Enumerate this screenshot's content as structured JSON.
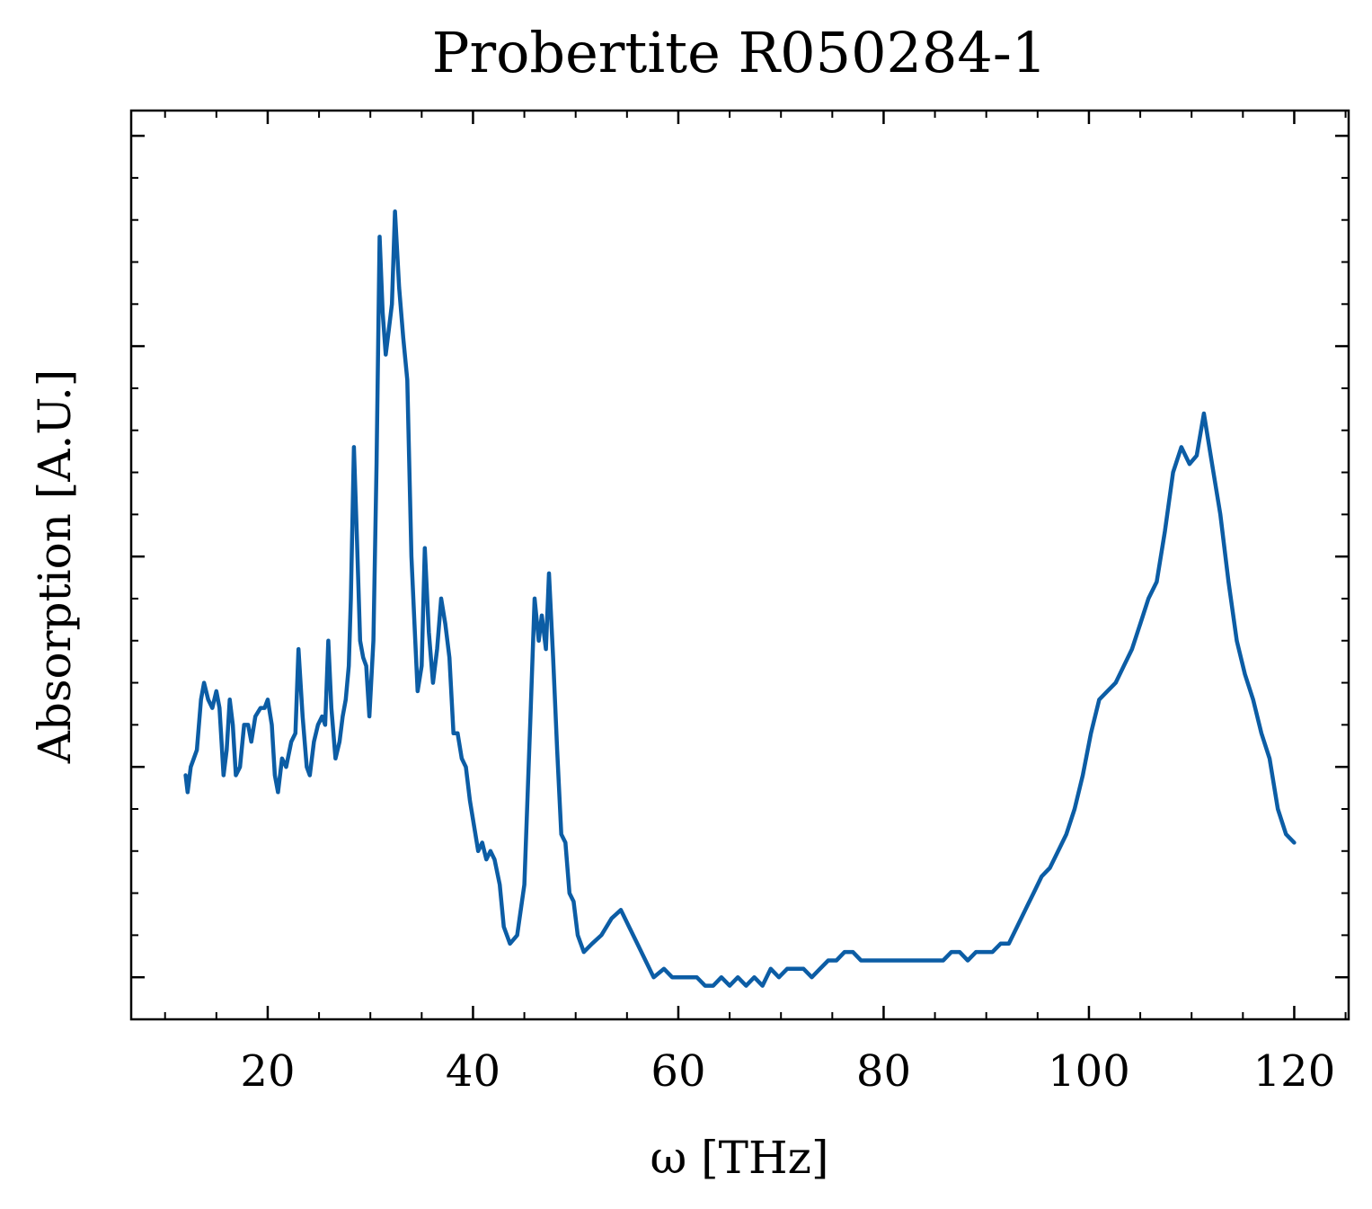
{
  "chart_data": {
    "type": "line",
    "title": "Probertite R050284-1",
    "xlabel": "ω [THz]",
    "ylabel": "Absorption [A.U.]",
    "xlim": [
      6.7,
      125.3
    ],
    "ylim": [
      0.0,
      1.08
    ],
    "xticks": [
      20,
      40,
      60,
      80,
      100,
      120
    ],
    "xticks_minor_step": 5,
    "yticks": [
      0.05,
      0.3,
      0.55,
      0.8,
      1.05
    ],
    "yticks_minor_step": 0.05,
    "ytick_labels_visible": false,
    "grid": false,
    "legend": "none",
    "colors": {
      "series": "#0c5da5"
    },
    "series": [
      {
        "color": "#0c5da5",
        "points": [
          [
            12.0,
            0.29
          ],
          [
            12.2,
            0.27
          ],
          [
            12.5,
            0.3
          ],
          [
            12.8,
            0.31
          ],
          [
            13.1,
            0.32
          ],
          [
            13.5,
            0.38
          ],
          [
            13.8,
            0.4
          ],
          [
            14.2,
            0.38
          ],
          [
            14.6,
            0.37
          ],
          [
            15.0,
            0.39
          ],
          [
            15.3,
            0.37
          ],
          [
            15.7,
            0.29
          ],
          [
            16.0,
            0.32
          ],
          [
            16.3,
            0.38
          ],
          [
            16.6,
            0.35
          ],
          [
            16.9,
            0.29
          ],
          [
            17.3,
            0.3
          ],
          [
            17.7,
            0.35
          ],
          [
            18.1,
            0.35
          ],
          [
            18.4,
            0.33
          ],
          [
            18.8,
            0.36
          ],
          [
            19.3,
            0.37
          ],
          [
            19.7,
            0.37
          ],
          [
            20.0,
            0.38
          ],
          [
            20.4,
            0.35
          ],
          [
            20.7,
            0.29
          ],
          [
            21.0,
            0.27
          ],
          [
            21.4,
            0.31
          ],
          [
            21.8,
            0.3
          ],
          [
            22.3,
            0.33
          ],
          [
            22.7,
            0.34
          ],
          [
            23.0,
            0.44
          ],
          [
            23.4,
            0.36
          ],
          [
            23.8,
            0.3
          ],
          [
            24.1,
            0.29
          ],
          [
            24.5,
            0.33
          ],
          [
            24.9,
            0.35
          ],
          [
            25.3,
            0.36
          ],
          [
            25.6,
            0.35
          ],
          [
            25.9,
            0.45
          ],
          [
            26.2,
            0.37
          ],
          [
            26.6,
            0.31
          ],
          [
            27.0,
            0.33
          ],
          [
            27.3,
            0.36
          ],
          [
            27.6,
            0.38
          ],
          [
            27.9,
            0.42
          ],
          [
            28.1,
            0.5
          ],
          [
            28.4,
            0.68
          ],
          [
            28.7,
            0.57
          ],
          [
            29.0,
            0.45
          ],
          [
            29.3,
            0.43
          ],
          [
            29.6,
            0.42
          ],
          [
            29.9,
            0.36
          ],
          [
            30.3,
            0.45
          ],
          [
            30.6,
            0.66
          ],
          [
            30.9,
            0.93
          ],
          [
            31.2,
            0.84
          ],
          [
            31.5,
            0.79
          ],
          [
            31.8,
            0.82
          ],
          [
            32.1,
            0.85
          ],
          [
            32.4,
            0.96
          ],
          [
            32.8,
            0.87
          ],
          [
            33.2,
            0.81
          ],
          [
            33.6,
            0.76
          ],
          [
            34.0,
            0.55
          ],
          [
            34.3,
            0.47
          ],
          [
            34.6,
            0.39
          ],
          [
            35.0,
            0.42
          ],
          [
            35.3,
            0.56
          ],
          [
            35.7,
            0.46
          ],
          [
            36.1,
            0.4
          ],
          [
            36.5,
            0.44
          ],
          [
            36.9,
            0.5
          ],
          [
            37.3,
            0.47
          ],
          [
            37.7,
            0.43
          ],
          [
            38.1,
            0.34
          ],
          [
            38.5,
            0.34
          ],
          [
            38.9,
            0.31
          ],
          [
            39.3,
            0.3
          ],
          [
            39.7,
            0.26
          ],
          [
            40.1,
            0.23
          ],
          [
            40.5,
            0.2
          ],
          [
            40.9,
            0.21
          ],
          [
            41.3,
            0.19
          ],
          [
            41.7,
            0.2
          ],
          [
            42.1,
            0.19
          ],
          [
            42.6,
            0.16
          ],
          [
            43.0,
            0.11
          ],
          [
            43.6,
            0.09
          ],
          [
            44.3,
            0.1
          ],
          [
            45.0,
            0.16
          ],
          [
            45.6,
            0.36
          ],
          [
            46.0,
            0.5
          ],
          [
            46.4,
            0.45
          ],
          [
            46.7,
            0.48
          ],
          [
            47.1,
            0.44
          ],
          [
            47.4,
            0.53
          ],
          [
            47.8,
            0.43
          ],
          [
            48.2,
            0.32
          ],
          [
            48.6,
            0.22
          ],
          [
            49.0,
            0.21
          ],
          [
            49.4,
            0.15
          ],
          [
            49.8,
            0.14
          ],
          [
            50.2,
            0.1
          ],
          [
            50.8,
            0.08
          ],
          [
            51.6,
            0.09
          ],
          [
            52.5,
            0.1
          ],
          [
            53.5,
            0.12
          ],
          [
            54.4,
            0.13
          ],
          [
            55.2,
            0.11
          ],
          [
            56.0,
            0.09
          ],
          [
            56.8,
            0.07
          ],
          [
            57.6,
            0.05
          ],
          [
            58.6,
            0.06
          ],
          [
            59.4,
            0.05
          ],
          [
            60.2,
            0.05
          ],
          [
            61.0,
            0.05
          ],
          [
            61.8,
            0.05
          ],
          [
            62.6,
            0.04
          ],
          [
            63.4,
            0.04
          ],
          [
            64.2,
            0.05
          ],
          [
            65.0,
            0.04
          ],
          [
            65.8,
            0.05
          ],
          [
            66.6,
            0.04
          ],
          [
            67.4,
            0.05
          ],
          [
            68.2,
            0.04
          ],
          [
            69.0,
            0.06
          ],
          [
            69.8,
            0.05
          ],
          [
            70.6,
            0.06
          ],
          [
            71.4,
            0.06
          ],
          [
            72.2,
            0.06
          ],
          [
            73.0,
            0.05
          ],
          [
            73.8,
            0.06
          ],
          [
            74.6,
            0.07
          ],
          [
            75.4,
            0.07
          ],
          [
            76.2,
            0.08
          ],
          [
            77.0,
            0.08
          ],
          [
            77.8,
            0.07
          ],
          [
            78.6,
            0.07
          ],
          [
            79.4,
            0.07
          ],
          [
            80.2,
            0.07
          ],
          [
            81.0,
            0.07
          ],
          [
            81.8,
            0.07
          ],
          [
            82.6,
            0.07
          ],
          [
            83.4,
            0.07
          ],
          [
            84.2,
            0.07
          ],
          [
            85.0,
            0.07
          ],
          [
            85.8,
            0.07
          ],
          [
            86.6,
            0.08
          ],
          [
            87.4,
            0.08
          ],
          [
            88.2,
            0.07
          ],
          [
            89.0,
            0.08
          ],
          [
            89.8,
            0.08
          ],
          [
            90.6,
            0.08
          ],
          [
            91.4,
            0.09
          ],
          [
            92.2,
            0.09
          ],
          [
            93.0,
            0.11
          ],
          [
            93.8,
            0.13
          ],
          [
            94.6,
            0.15
          ],
          [
            95.4,
            0.17
          ],
          [
            96.2,
            0.18
          ],
          [
            97.0,
            0.2
          ],
          [
            97.8,
            0.22
          ],
          [
            98.6,
            0.25
          ],
          [
            99.4,
            0.29
          ],
          [
            100.2,
            0.34
          ],
          [
            101.0,
            0.38
          ],
          [
            101.8,
            0.39
          ],
          [
            102.6,
            0.4
          ],
          [
            103.4,
            0.42
          ],
          [
            104.2,
            0.44
          ],
          [
            105.0,
            0.47
          ],
          [
            105.8,
            0.5
          ],
          [
            106.6,
            0.52
          ],
          [
            107.4,
            0.58
          ],
          [
            108.2,
            0.65
          ],
          [
            109.0,
            0.68
          ],
          [
            109.8,
            0.66
          ],
          [
            110.5,
            0.67
          ],
          [
            111.2,
            0.72
          ],
          [
            112.0,
            0.66
          ],
          [
            112.8,
            0.6
          ],
          [
            113.6,
            0.52
          ],
          [
            114.4,
            0.45
          ],
          [
            115.2,
            0.41
          ],
          [
            116.0,
            0.38
          ],
          [
            116.8,
            0.34
          ],
          [
            117.6,
            0.31
          ],
          [
            118.4,
            0.25
          ],
          [
            119.2,
            0.22
          ],
          [
            120.0,
            0.21
          ]
        ]
      }
    ]
  }
}
